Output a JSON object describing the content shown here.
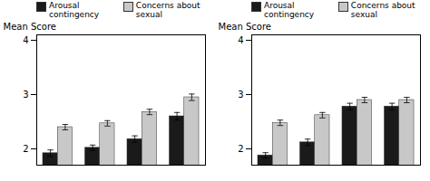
{
  "chart_data": [
    {
      "type": "bar",
      "ylabel": "Mean Score",
      "categories": [
        null,
        null,
        null,
        null
      ],
      "series": [
        {
          "name": "Arousal contingency",
          "color": "#1a1a1a",
          "values": [
            1.92,
            2.02,
            2.18,
            2.6
          ],
          "errors": [
            0.06,
            0.05,
            0.06,
            0.07
          ]
        },
        {
          "name": "Concerns about sexual\nfunction",
          "color": "#c8c8c8",
          "values": [
            2.4,
            2.47,
            2.68,
            2.95
          ],
          "errors": [
            0.05,
            0.05,
            0.05,
            0.06
          ]
        }
      ],
      "ylim": [
        1.7,
        4.1
      ],
      "yticks": [
        2,
        3,
        4
      ],
      "legend": "upper left"
    },
    {
      "type": "bar",
      "ylabel": "Mean Score",
      "categories": [
        null,
        null,
        null,
        null
      ],
      "series": [
        {
          "name": "Arousal contingency",
          "color": "#1a1a1a",
          "values": [
            1.88,
            2.12,
            2.78,
            2.78
          ],
          "errors": [
            0.05,
            0.06,
            0.06,
            0.06
          ]
        },
        {
          "name": "Concerns about sexual\nfunction",
          "color": "#c8c8c8",
          "values": [
            2.48,
            2.62,
            2.9,
            2.9
          ],
          "errors": [
            0.05,
            0.05,
            0.05,
            0.05
          ]
        }
      ],
      "ylim": [
        1.7,
        4.1
      ],
      "yticks": [
        2,
        3,
        4
      ],
      "legend": "upper left"
    }
  ]
}
